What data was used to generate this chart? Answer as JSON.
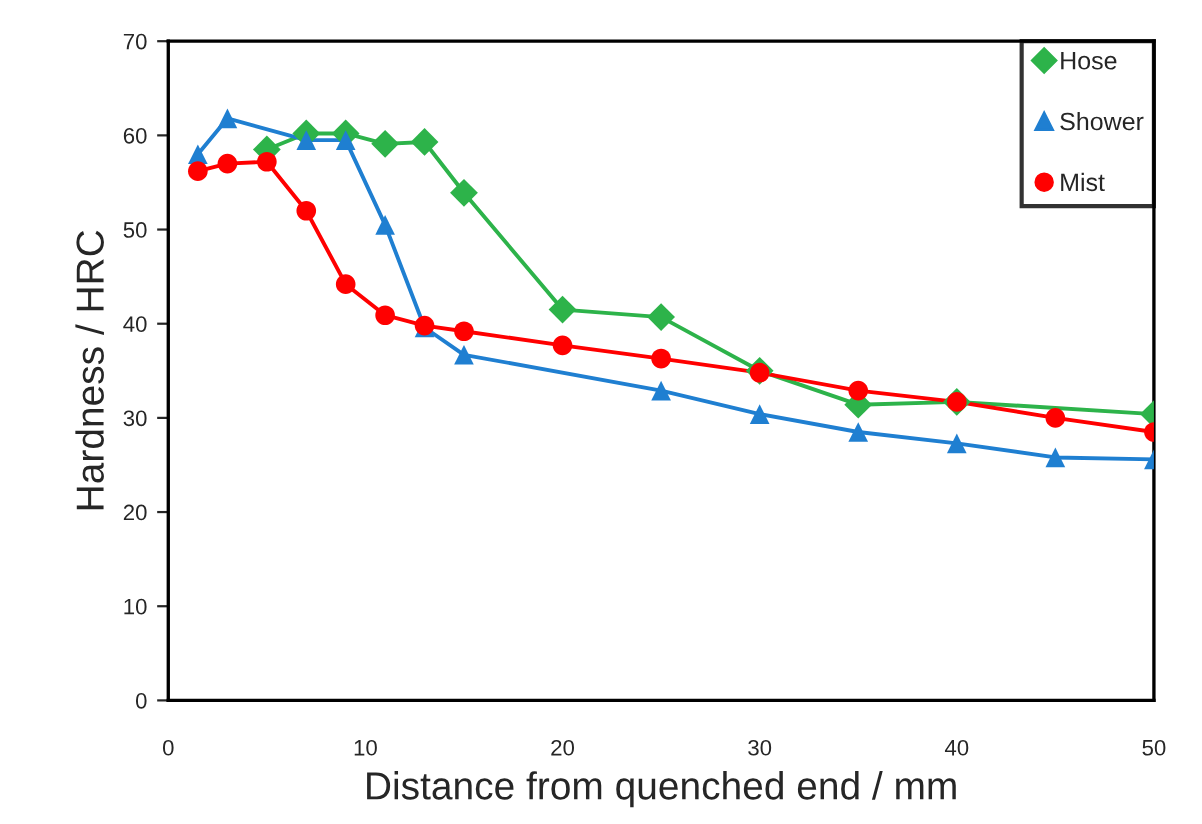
{
  "chart_data": {
    "type": "line",
    "xlabel": "Distance from quenched end / mm",
    "ylabel": "Hardness / HRC",
    "xlim": [
      0,
      50
    ],
    "xticks": [
      0,
      10,
      20,
      30,
      40,
      50
    ],
    "ylim": [
      0,
      70
    ],
    "yticks": [
      0,
      10,
      20,
      30,
      40,
      50,
      60,
      70
    ],
    "grid": false,
    "legend": "top right",
    "series": [
      {
        "name": "Hose",
        "color": "#2db34a",
        "marker": "diamond",
        "x": [
          5,
          7,
          9,
          11,
          13,
          15,
          20,
          25,
          30,
          35,
          40,
          50
        ],
        "values": [
          58.5,
          60.2,
          60.2,
          59.1,
          59.3,
          53.9,
          41.5,
          40.7,
          35,
          31.4,
          31.7,
          30.4
        ]
      },
      {
        "name": "Shower",
        "color": "#1f7fd1",
        "marker": "triangle",
        "x": [
          1.5,
          3,
          7,
          9,
          11,
          13,
          15,
          25,
          30,
          35,
          40,
          45,
          50
        ],
        "values": [
          58,
          61.8,
          59.5,
          59.5,
          50.5,
          39.6,
          36.7,
          32.9,
          30.4,
          28.5,
          27.3,
          25.8,
          25.6
        ]
      },
      {
        "name": "Mist",
        "color": "#ff0000",
        "marker": "circle",
        "x": [
          1.5,
          3,
          5,
          7,
          9,
          11,
          13,
          15,
          20,
          25,
          30,
          35,
          40,
          45,
          50
        ],
        "values": [
          56.2,
          57,
          57.2,
          52,
          44.2,
          40.9,
          39.8,
          39.2,
          37.7,
          36.3,
          34.8,
          32.9,
          31.7,
          30,
          28.5
        ]
      }
    ]
  }
}
